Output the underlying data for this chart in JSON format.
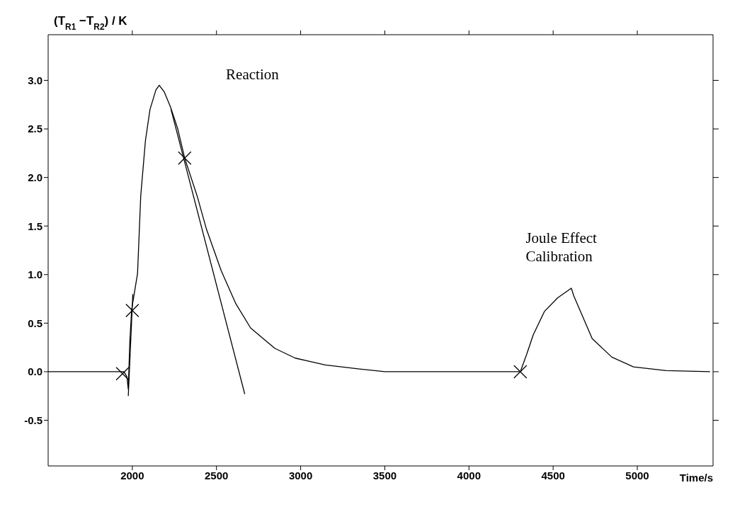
{
  "chart_data": {
    "type": "line",
    "xlabel": "Time/s",
    "ylabel": "(T$_{R1}$ −T$_{R2}$) / K",
    "xlim": [
      1500,
      5450
    ],
    "xticks": [
      2000,
      2500,
      3000,
      3500,
      4000,
      4500,
      5000
    ],
    "ylim": [
      -0.97,
      3.47
    ],
    "yticks": [
      {
        "value": -0.5,
        "label": "-0.5"
      },
      {
        "value": 0,
        "label": "0.0"
      },
      {
        "value": 0.5,
        "label": "0.5"
      },
      {
        "value": 1,
        "label": "1.0"
      },
      {
        "value": 1.5,
        "label": "1.5"
      },
      {
        "value": 2,
        "label": "2.0"
      },
      {
        "value": 2.5,
        "label": "2.5"
      },
      {
        "value": 3,
        "label": "3.0"
      }
    ],
    "marker": "none",
    "line_style": "solid",
    "series": [
      {
        "color": "#000000",
        "x": [
          1500,
          1950,
          1968,
          1976,
          1985,
          1996,
          2031,
          2050,
          2078,
          2105,
          2140,
          2160,
          2190,
          2226,
          2270,
          2311,
          2385,
          2440,
          2528,
          2615,
          2703,
          2847,
          2968,
          3146,
          3341,
          3500,
          4305,
          4343,
          4382,
          4448,
          4526,
          4608,
          4623,
          4680,
          4732,
          4849,
          4977,
          5171,
          5432
        ],
        "values": [
          0,
          0,
          -0.05,
          -0.18,
          0.3,
          0.64,
          1.01,
          1.81,
          2.38,
          2.7,
          2.9,
          2.95,
          2.88,
          2.73,
          2.5,
          2.2,
          1.81,
          1.47,
          1.04,
          0.7,
          0.45,
          0.24,
          0.14,
          0.07,
          0.03,
          0,
          0,
          0.18,
          0.38,
          0.62,
          0.76,
          0.86,
          0.78,
          0.55,
          0.34,
          0.15,
          0.05,
          0.012,
          0
        ]
      },
      {
        "color": "#000000",
        "x": [
          2230,
          2668
        ],
        "values": [
          2.7,
          -0.23
        ]
      },
      {
        "color": "#000000",
        "x": [
          1976,
          2003
        ],
        "values": [
          -0.25,
          0.8
        ]
      },
      {
        "type": "scatter",
        "color": "#000000",
        "marker": "cross",
        "x": [
          1942,
          2000,
          2311,
          4305
        ],
        "values": [
          -0.02,
          0.63,
          2.2,
          0
        ]
      }
    ],
    "annotations": [
      "Reaction",
      "Joule Effect Calibration"
    ]
  }
}
